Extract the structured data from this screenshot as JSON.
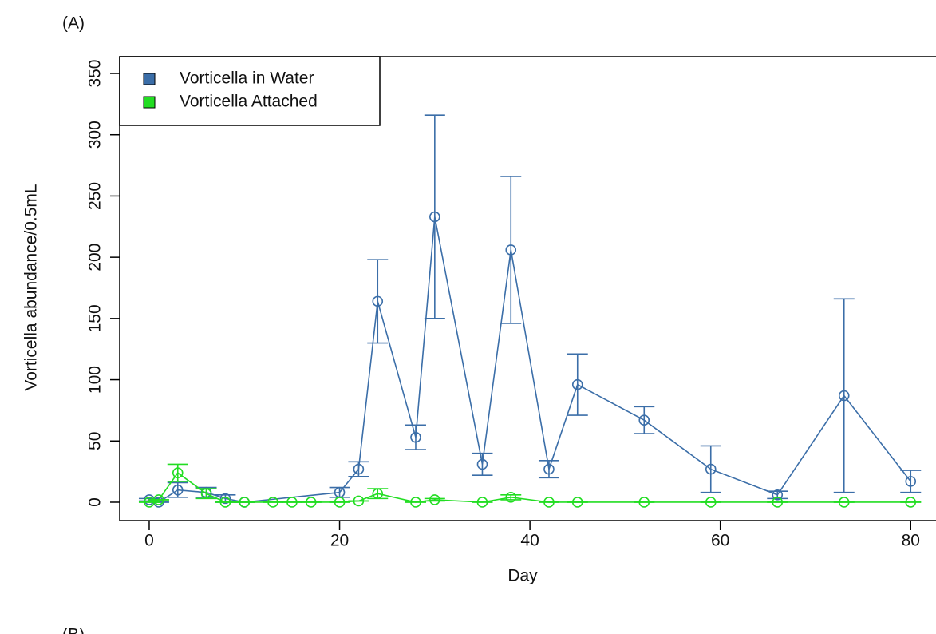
{
  "chart_data": {
    "type": "line",
    "annotations": [
      "(A)",
      "(B)"
    ],
    "x_label": "Day",
    "y_label": "Vorticella abundance/0.5mL",
    "xlim": [
      -3.1,
      83.5
    ],
    "ylim": [
      -15,
      363.7
    ],
    "xticks": [
      0,
      20,
      40,
      60,
      80
    ],
    "yticks": [
      0,
      50,
      100,
      150,
      200,
      250,
      300,
      350
    ],
    "legend": "top-left",
    "series": [
      {
        "name": "Vorticella in Water",
        "color": "#3b6ea8",
        "x": [
          0,
          1,
          3,
          6,
          8,
          10,
          20,
          22,
          24,
          28,
          30,
          35,
          38,
          42,
          45,
          52,
          59,
          66,
          73,
          80
        ],
        "values": [
          2,
          0,
          10,
          8,
          3,
          0,
          8,
          27,
          164,
          53,
          233,
          31,
          206,
          27,
          96,
          67,
          27,
          6,
          87,
          17
        ],
        "errors": [
          1,
          0,
          6,
          4,
          3,
          0,
          4,
          6,
          34,
          10,
          83,
          9,
          60,
          7,
          25,
          11,
          19,
          3,
          79,
          9
        ]
      },
      {
        "name": "Vorticella Attached",
        "color": "#22dd22",
        "x": [
          0,
          1,
          3,
          6,
          8,
          10,
          13,
          15,
          17,
          20,
          22,
          24,
          28,
          30,
          35,
          38,
          42,
          45,
          52,
          59,
          66,
          73,
          80
        ],
        "values": [
          0,
          2,
          24,
          7,
          0,
          0,
          0,
          0,
          0,
          0,
          1,
          7,
          0,
          2,
          0,
          4,
          0,
          0,
          0,
          0,
          0,
          0,
          0
        ],
        "errors": [
          0,
          0,
          7,
          4,
          0,
          0,
          0,
          0,
          0,
          0,
          0,
          4,
          0,
          1,
          0,
          2,
          0,
          0,
          0,
          0,
          0,
          0,
          0
        ]
      }
    ]
  }
}
